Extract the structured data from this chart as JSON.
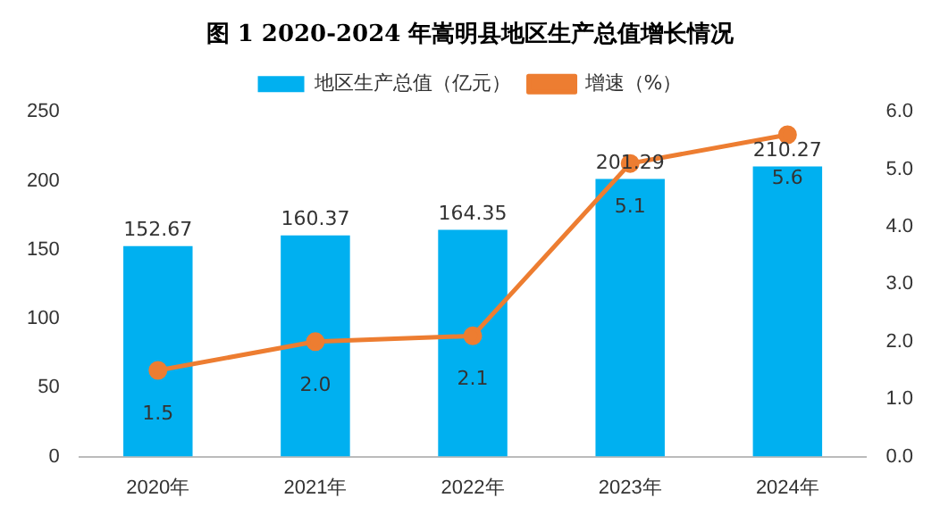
{
  "chart_data": {
    "type": "bar",
    "title": "图 1 2020-2024 年嵩明县地区生产总值增长情况",
    "categories": [
      "2020年",
      "2021年",
      "2022年",
      "2023年",
      "2024年"
    ],
    "series": [
      {
        "name": "地区生产总值（亿元）",
        "color": "#00b0f0",
        "values": [
          152.67,
          160.37,
          164.35,
          201.29,
          210.27
        ],
        "value_labels": [
          "152.67",
          "160.37",
          "164.35",
          "201.29",
          "210.27"
        ]
      },
      {
        "name": "增速（%）",
        "type": "line",
        "axis": "y2",
        "color": "#ed7d31",
        "marker": "circle",
        "values": [
          1.5,
          2.0,
          2.1,
          5.1,
          5.6
        ],
        "value_labels": [
          "1.5",
          "2.0",
          "2.1",
          "5.1",
          "5.6"
        ]
      }
    ],
    "ylim": [
      0,
      250
    ],
    "yticks": [
      0,
      50,
      100,
      150,
      200,
      250
    ],
    "y2lim": [
      0,
      6
    ],
    "y2ticks": [
      {
        "value": 0,
        "label": "0.0"
      },
      {
        "value": 1,
        "label": "1.0"
      },
      {
        "value": 2,
        "label": "2.0"
      },
      {
        "value": 3,
        "label": "3.0"
      },
      {
        "value": 4,
        "label": "4.0"
      },
      {
        "value": 5,
        "label": "5.0"
      },
      {
        "value": 6,
        "label": "6.0"
      }
    ],
    "legend": "top",
    "grid": false
  }
}
